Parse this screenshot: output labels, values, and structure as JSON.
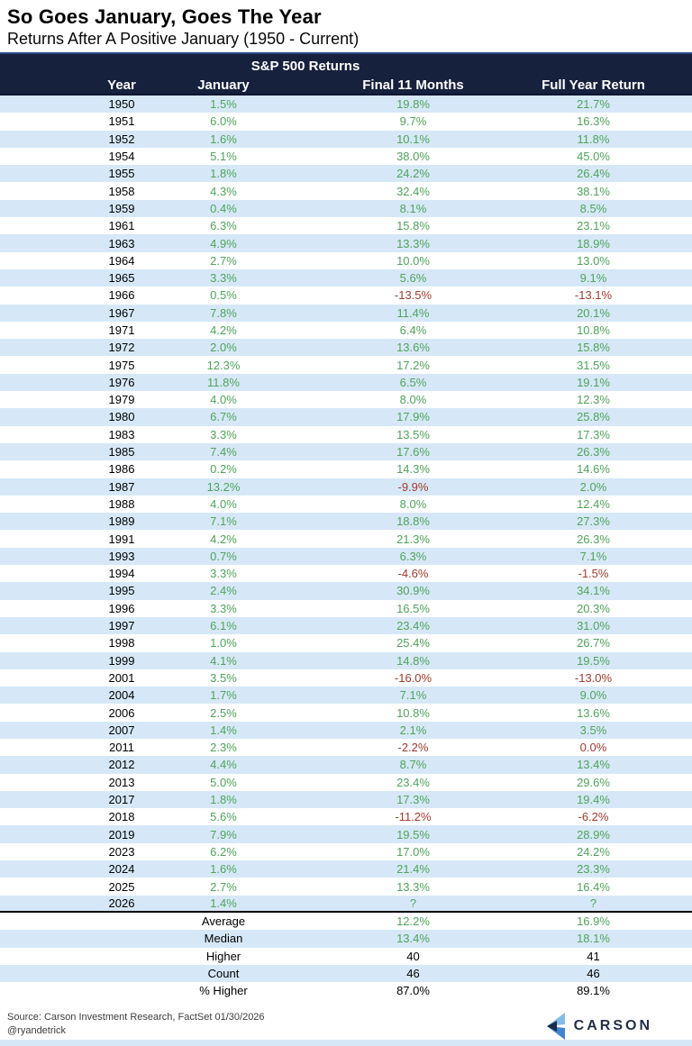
{
  "chart_data": {
    "type": "table",
    "title": "So Goes January, Goes The Year",
    "subtitle": "Returns After A Positive January (1950 - Current)",
    "group_header": "S&P 500 Returns",
    "columns": [
      "Year",
      "January",
      "Final 11 Months",
      "Full Year Return"
    ],
    "rows": [
      [
        "1950",
        "1.5%",
        "19.8%",
        "21.7%"
      ],
      [
        "1951",
        "6.0%",
        "9.7%",
        "16.3%"
      ],
      [
        "1952",
        "1.6%",
        "10.1%",
        "11.8%"
      ],
      [
        "1954",
        "5.1%",
        "38.0%",
        "45.0%"
      ],
      [
        "1955",
        "1.8%",
        "24.2%",
        "26.4%"
      ],
      [
        "1958",
        "4.3%",
        "32.4%",
        "38.1%"
      ],
      [
        "1959",
        "0.4%",
        "8.1%",
        "8.5%"
      ],
      [
        "1961",
        "6.3%",
        "15.8%",
        "23.1%"
      ],
      [
        "1963",
        "4.9%",
        "13.3%",
        "18.9%"
      ],
      [
        "1964",
        "2.7%",
        "10.0%",
        "13.0%"
      ],
      [
        "1965",
        "3.3%",
        "5.6%",
        "9.1%"
      ],
      [
        "1966",
        "0.5%",
        "-13.5%",
        "-13.1%"
      ],
      [
        "1967",
        "7.8%",
        "11.4%",
        "20.1%"
      ],
      [
        "1971",
        "4.2%",
        "6.4%",
        "10.8%"
      ],
      [
        "1972",
        "2.0%",
        "13.6%",
        "15.8%"
      ],
      [
        "1975",
        "12.3%",
        "17.2%",
        "31.5%"
      ],
      [
        "1976",
        "11.8%",
        "6.5%",
        "19.1%"
      ],
      [
        "1979",
        "4.0%",
        "8.0%",
        "12.3%"
      ],
      [
        "1980",
        "6.7%",
        "17.9%",
        "25.8%"
      ],
      [
        "1983",
        "3.3%",
        "13.5%",
        "17.3%"
      ],
      [
        "1985",
        "7.4%",
        "17.6%",
        "26.3%"
      ],
      [
        "1986",
        "0.2%",
        "14.3%",
        "14.6%"
      ],
      [
        "1987",
        "13.2%",
        "-9.9%",
        "2.0%"
      ],
      [
        "1988",
        "4.0%",
        "8.0%",
        "12.4%"
      ],
      [
        "1989",
        "7.1%",
        "18.8%",
        "27.3%"
      ],
      [
        "1991",
        "4.2%",
        "21.3%",
        "26.3%"
      ],
      [
        "1993",
        "0.7%",
        "6.3%",
        "7.1%"
      ],
      [
        "1994",
        "3.3%",
        "-4.6%",
        "-1.5%"
      ],
      [
        "1995",
        "2.4%",
        "30.9%",
        "34.1%"
      ],
      [
        "1996",
        "3.3%",
        "16.5%",
        "20.3%"
      ],
      [
        "1997",
        "6.1%",
        "23.4%",
        "31.0%"
      ],
      [
        "1998",
        "1.0%",
        "25.4%",
        "26.7%"
      ],
      [
        "1999",
        "4.1%",
        "14.8%",
        "19.5%"
      ],
      [
        "2001",
        "3.5%",
        "-16.0%",
        "-13.0%"
      ],
      [
        "2004",
        "1.7%",
        "7.1%",
        "9.0%"
      ],
      [
        "2006",
        "2.5%",
        "10.8%",
        "13.6%"
      ],
      [
        "2007",
        "1.4%",
        "2.1%",
        "3.5%"
      ],
      [
        "2011",
        "2.3%",
        "-2.2%",
        "0.0%"
      ],
      [
        "2012",
        "4.4%",
        "8.7%",
        "13.4%"
      ],
      [
        "2013",
        "5.0%",
        "23.4%",
        "29.6%"
      ],
      [
        "2017",
        "1.8%",
        "17.3%",
        "19.4%"
      ],
      [
        "2018",
        "5.6%",
        "-11.2%",
        "-6.2%"
      ],
      [
        "2019",
        "7.9%",
        "19.5%",
        "28.9%"
      ],
      [
        "2023",
        "6.2%",
        "17.0%",
        "24.2%"
      ],
      [
        "2024",
        "1.6%",
        "21.4%",
        "23.3%"
      ],
      [
        "2025",
        "2.7%",
        "13.3%",
        "16.4%"
      ],
      [
        "2026",
        "1.4%",
        "?",
        "?"
      ]
    ],
    "red_final11_years": [
      "1966",
      "1987",
      "1994",
      "2001",
      "2011",
      "2018"
    ],
    "red_full_year_years": [
      "1966",
      "1994",
      "2001",
      "2011",
      "2018"
    ],
    "summary": [
      {
        "label": "Average",
        "final11": "12.2%",
        "full_year": "16.9%",
        "value_color": "green"
      },
      {
        "label": "Median",
        "final11": "13.4%",
        "full_year": "18.1%",
        "value_color": "green"
      },
      {
        "label": "Higher",
        "final11": "40",
        "full_year": "41",
        "value_color": "black"
      },
      {
        "label": "Count",
        "final11": "46",
        "full_year": "46",
        "value_color": "black"
      },
      {
        "label": "% Higher",
        "final11": "87.0%",
        "full_year": "89.1%",
        "value_color": "black"
      }
    ],
    "colors": {
      "header_navy": "#16213e",
      "row_stripe": "#d6e8f7",
      "positive_green": "#4fa45a",
      "negative_red": "#a33b2d"
    }
  },
  "footer": {
    "source": "Source: Carson Investment Research, FactSet 01/30/2026",
    "handle": "@ryandetrick",
    "logo_text": "CARSON"
  }
}
